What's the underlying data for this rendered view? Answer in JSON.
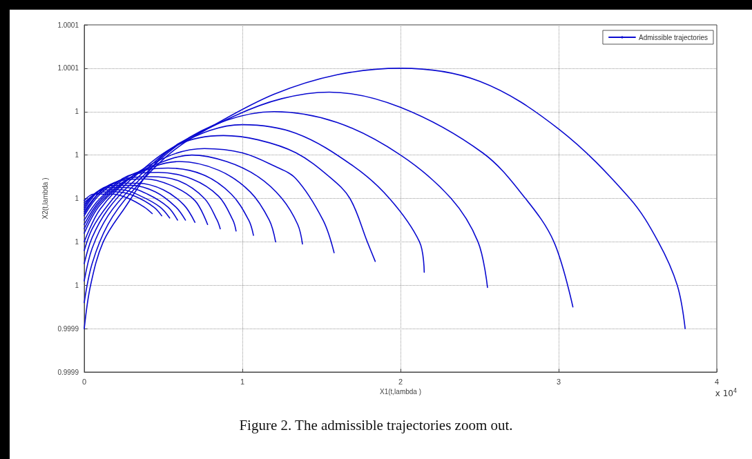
{
  "chart_data": {
    "type": "line",
    "title": "Figure 2. The admissible trajectories zoom out.",
    "xlabel": "X1(t,lambda )",
    "ylabel": "X2(t,lambda )",
    "annotations": [
      "x 10$^{4}$"
    ],
    "xlim": [
      0,
      4
    ],
    "xticks": [
      0,
      1,
      2,
      3,
      4
    ],
    "ylim": [
      0.99992,
      1.00008
    ],
    "yticks": [
      {
        "value": 0.99992,
        "label": "0.9999"
      },
      {
        "value": 0.99994,
        "label": "0.9999"
      },
      {
        "value": 0.99996,
        "label": "1"
      },
      {
        "value": 0.99998,
        "label": "1"
      },
      {
        "value": 1.0,
        "label": "1"
      },
      {
        "value": 1.00002,
        "label": "1"
      },
      {
        "value": 1.00004,
        "label": "1"
      },
      {
        "value": 1.00006,
        "label": "1.0001"
      },
      {
        "value": 1.00008,
        "label": "1.0001"
      }
    ],
    "grid": true,
    "legend": "top right",
    "series": [
      {
        "name": "Admissible trajectories",
        "color": "#0a0ad0",
        "x": [
          0,
          0.04,
          0.12,
          0.25,
          0.5,
          0.8,
          1.2,
          1.6,
          2.0,
          2.5,
          3.0,
          3.45,
          3.63,
          3.75,
          3.8
        ],
        "values": [
          0.99994,
          0.99996,
          0.99998,
          0.999995,
          1.00002,
          1.000033,
          1.000048,
          1.000057,
          1.00006,
          1.000054,
          1.000032,
          1.0,
          0.99998,
          0.99996,
          0.99994
        ]
      },
      {
        "color": "#0a0ad0",
        "x": [
          0,
          0.05,
          0.15,
          0.3,
          0.6,
          0.95,
          1.25,
          1.55,
          2.0,
          2.52,
          2.79,
          2.97,
          3.09
        ],
        "values": [
          0.999952,
          0.99997,
          0.999988,
          1.000003,
          1.000024,
          1.000038,
          1.000046,
          1.000049,
          1.000042,
          1.000021,
          1.0,
          0.99998,
          0.99995
        ]
      },
      {
        "color": "#0a0ad0",
        "x": [
          0,
          0.05,
          0.15,
          0.3,
          0.6,
          0.9,
          1.2,
          1.6,
          2.0,
          2.32,
          2.49,
          2.55
        ],
        "values": [
          0.999962,
          0.999977,
          0.999992,
          1.000005,
          1.000025,
          1.000036,
          1.00004,
          1.000035,
          1.00002,
          1.0,
          0.99998,
          0.999959
        ]
      },
      {
        "color": "#0a0ad0",
        "x": [
          0,
          0.05,
          0.15,
          0.3,
          0.6,
          1.0,
          1.34,
          1.7,
          1.93,
          2.12,
          2.15
        ],
        "values": [
          0.99997,
          0.999982,
          0.999995,
          1.000007,
          1.000025,
          1.000034,
          1.00003,
          1.000015,
          1.0,
          0.99998,
          0.999966
        ]
      },
      {
        "color": "#0a0ad0",
        "x": [
          0,
          0.05,
          0.15,
          0.3,
          0.6,
          0.88,
          1.1,
          1.34,
          1.55,
          1.68,
          1.79,
          1.84
        ],
        "values": [
          0.999976,
          0.999986,
          0.999997,
          1.000009,
          1.000025,
          1.000029,
          1.000027,
          1.000021,
          1.00001,
          1.0,
          0.99998,
          0.999971
        ]
      },
      {
        "color": "#0a0ad0",
        "x": [
          0,
          0.1,
          0.3,
          0.55,
          0.76,
          1.0,
          1.2,
          1.34,
          1.51,
          1.58
        ],
        "values": [
          0.99998,
          0.999995,
          1.00001,
          1.00002,
          1.000023,
          1.000021,
          1.000015,
          1.000009,
          0.99999,
          0.999975
        ]
      },
      {
        "color": "#0a0ad0",
        "x": [
          0,
          0.1,
          0.3,
          0.5,
          0.68,
          0.9,
          1.1,
          1.25,
          1.35,
          1.38
        ],
        "values": [
          0.999984,
          0.999997,
          1.00001,
          1.000017,
          1.00002,
          1.000017,
          1.00001,
          1.0,
          0.999988,
          0.999979
        ]
      },
      {
        "color": "#0a0ad0",
        "x": [
          0,
          0.1,
          0.3,
          0.6,
          0.85,
          1.05,
          1.17,
          1.21
        ],
        "values": [
          0.999986,
          0.999998,
          1.00001,
          1.000017,
          1.000013,
          1.000003,
          0.99999,
          0.99998
        ]
      },
      {
        "color": "#0a0ad0",
        "x": [
          0,
          0.1,
          0.3,
          0.53,
          0.75,
          0.93,
          1.04,
          1.07
        ],
        "values": [
          0.999988,
          0.999999,
          1.000011,
          1.000014,
          1.000011,
          1.000002,
          0.99999,
          0.999983
        ]
      },
      {
        "color": "#0a0ad0",
        "x": [
          0,
          0.1,
          0.3,
          0.47,
          0.68,
          0.85,
          0.94,
          0.96
        ],
        "values": [
          0.99999,
          1.0,
          1.000011,
          1.000012,
          1.000009,
          1.000001,
          0.99999,
          0.999985
        ]
      },
      {
        "color": "#0a0ad0",
        "x": [
          0,
          0.1,
          0.25,
          0.42,
          0.6,
          0.76,
          0.84,
          0.86
        ],
        "values": [
          0.999992,
          1.000002,
          1.000009,
          1.00001,
          1.000008,
          1.0,
          0.99999,
          0.999986
        ]
      },
      {
        "color": "#0a0ad0",
        "x": [
          0,
          0.1,
          0.22,
          0.38,
          0.55,
          0.7,
          0.78
        ],
        "values": [
          0.999993,
          1.000003,
          1.000008,
          1.000009,
          1.000006,
          0.999999,
          0.999988
        ]
      },
      {
        "color": "#0a0ad0",
        "x": [
          0,
          0.1,
          0.2,
          0.34,
          0.5,
          0.63,
          0.7
        ],
        "values": [
          0.999994,
          1.000003,
          1.000007,
          1.000007,
          1.000004,
          0.999997,
          0.999989
        ]
      },
      {
        "color": "#0a0ad0",
        "x": [
          0,
          0.1,
          0.2,
          0.3,
          0.45,
          0.58,
          0.64
        ],
        "values": [
          0.999995,
          1.000004,
          1.000006,
          1.000006,
          1.000003,
          0.999996,
          0.99999
        ]
      },
      {
        "color": "#0a0ad0",
        "x": [
          0,
          0.08,
          0.17,
          0.27,
          0.4,
          0.53,
          0.59
        ],
        "values": [
          0.999996,
          1.000003,
          1.000005,
          1.000005,
          1.000002,
          0.999996,
          0.99999
        ]
      },
      {
        "color": "#0a0ad0",
        "x": [
          0,
          0.08,
          0.16,
          0.24,
          0.36,
          0.48,
          0.54
        ],
        "values": [
          0.999997,
          1.000003,
          1.000004,
          1.000004,
          1.000001,
          0.999996,
          0.999991
        ]
      },
      {
        "color": "#0a0ad0",
        "x": [
          0,
          0.07,
          0.14,
          0.21,
          0.32,
          0.44,
          0.49
        ],
        "values": [
          0.999998,
          1.000002,
          1.000003,
          1.000003,
          1.000001,
          0.999996,
          0.999992
        ]
      },
      {
        "color": "#0a0ad0",
        "x": [
          0,
          0.06,
          0.12,
          0.18,
          0.28,
          0.38,
          0.43
        ],
        "values": [
          0.999999,
          1.000002,
          1.000002,
          1.000002,
          1.0,
          0.999996,
          0.999993
        ]
      }
    ]
  }
}
